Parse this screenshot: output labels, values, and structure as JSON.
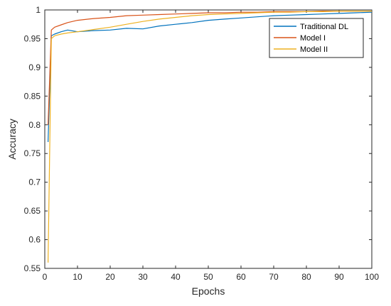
{
  "chart_data": {
    "type": "line",
    "title": "",
    "xlabel": "Epochs",
    "ylabel": "Accuracy",
    "xlim": [
      0,
      100
    ],
    "ylim": [
      0.55,
      1
    ],
    "xticks": [
      0,
      10,
      20,
      30,
      40,
      50,
      60,
      70,
      80,
      90,
      100
    ],
    "yticks": [
      0.55,
      0.6,
      0.65,
      0.7,
      0.75,
      0.8,
      0.85,
      0.9,
      0.95,
      1
    ],
    "ytick_labels": [
      "0.55",
      "0.6",
      "0.65",
      "0.7",
      "0.75",
      "0.8",
      "0.85",
      "0.9",
      "0.95",
      "1"
    ],
    "grid": false,
    "legend_position": "top-right",
    "series": [
      {
        "name": "Traditional DL",
        "color": "#0072BD",
        "x": [
          1,
          2,
          3,
          5,
          7,
          10,
          15,
          20,
          25,
          30,
          35,
          40,
          45,
          50,
          55,
          60,
          65,
          70,
          75,
          80,
          85,
          90,
          95,
          100
        ],
        "values": [
          0.77,
          0.955,
          0.958,
          0.962,
          0.965,
          0.962,
          0.964,
          0.965,
          0.968,
          0.967,
          0.972,
          0.975,
          0.978,
          0.982,
          0.984,
          0.986,
          0.988,
          0.99,
          0.991,
          0.992,
          0.993,
          0.994,
          0.995,
          0.996
        ]
      },
      {
        "name": "Model I",
        "color": "#D95319",
        "x": [
          1,
          2,
          3,
          5,
          7,
          10,
          15,
          20,
          25,
          30,
          35,
          40,
          45,
          50,
          55,
          60,
          65,
          70,
          75,
          80,
          85,
          90,
          95,
          100
        ],
        "values": [
          0.8,
          0.965,
          0.97,
          0.974,
          0.978,
          0.982,
          0.985,
          0.987,
          0.99,
          0.991,
          0.992,
          0.993,
          0.994,
          0.995,
          0.995,
          0.996,
          0.996,
          0.997,
          0.997,
          0.997,
          0.998,
          0.998,
          0.998,
          0.998
        ]
      },
      {
        "name": "Model II",
        "color": "#EDB120",
        "x": [
          1,
          2,
          3,
          5,
          7,
          10,
          15,
          20,
          25,
          30,
          35,
          40,
          45,
          50,
          55,
          60,
          65,
          70,
          75,
          80,
          85,
          90,
          95,
          100
        ],
        "values": [
          0.56,
          0.95,
          0.955,
          0.958,
          0.96,
          0.962,
          0.966,
          0.97,
          0.975,
          0.98,
          0.984,
          0.987,
          0.99,
          0.992,
          0.993,
          0.994,
          0.995,
          0.996,
          0.996,
          0.997,
          0.997,
          0.998,
          0.998,
          0.998
        ]
      }
    ]
  }
}
